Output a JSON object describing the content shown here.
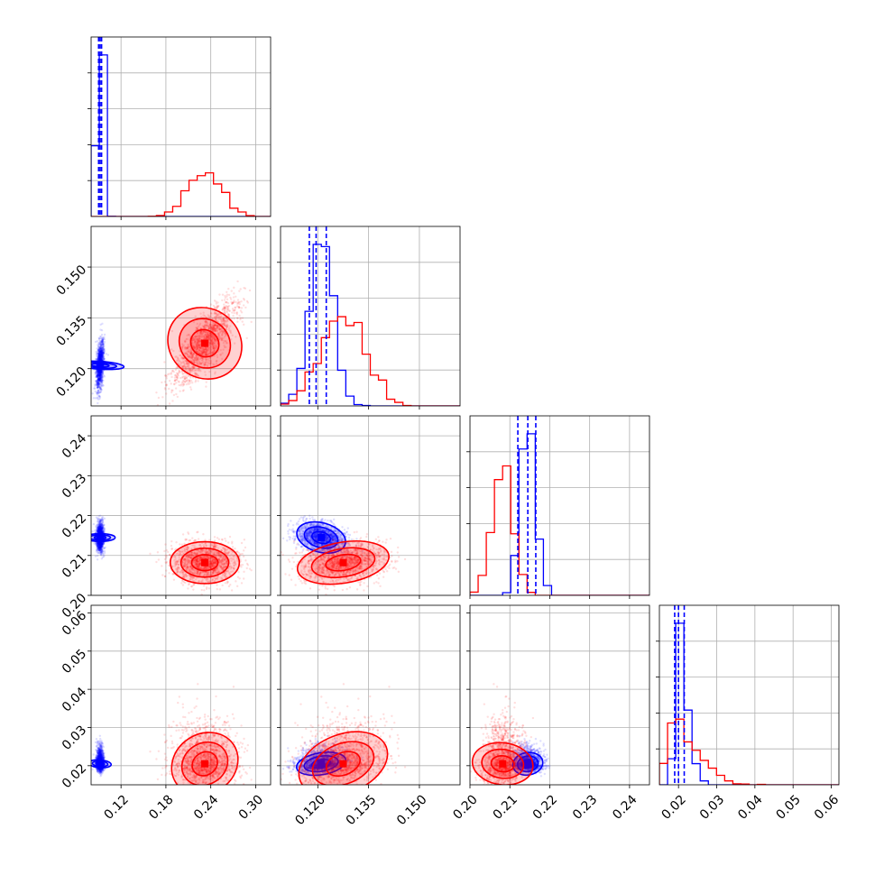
{
  "chart_data": {
    "type": "corner",
    "title": "",
    "parameters": [
      {
        "label": "",
        "range": [
          0.08,
          0.32
        ],
        "ticks": [
          0.12,
          0.18,
          0.24,
          0.3
        ],
        "tick_labels": [
          "0.12",
          "0.18",
          "0.24",
          "0.30"
        ]
      },
      {
        "label": "",
        "range": [
          0.109,
          0.162
        ],
        "ticks": [
          0.12,
          0.135,
          0.15
        ],
        "tick_labels": [
          "0.120",
          "0.135",
          "0.150"
        ]
      },
      {
        "label": "",
        "range": [
          0.2,
          0.245
        ],
        "ticks": [
          0.2,
          0.21,
          0.22,
          0.23,
          0.24
        ],
        "tick_labels": [
          "0.20",
          "0.21",
          "0.22",
          "0.23",
          "0.24"
        ]
      },
      {
        "label": "",
        "range": [
          0.015,
          0.062
        ],
        "ticks": [
          0.02,
          0.03,
          0.04,
          0.05,
          0.06
        ],
        "tick_labels": [
          "0.02",
          "0.03",
          "0.04",
          "0.05",
          "0.06"
        ]
      }
    ],
    "grid": true,
    "series": [
      {
        "color": "#0000ff",
        "mean": [
          0.092,
          0.121,
          0.2145,
          0.0205
        ],
        "std": [
          0.0025,
          0.0035,
          0.0018,
          0.0014
        ],
        "correlations": [
          [
            0,
            1,
            0.4
          ],
          [
            1,
            2,
            -0.3
          ],
          [
            0,
            3,
            0.2
          ],
          [
            1,
            3,
            0.3
          ],
          [
            2,
            3,
            0.1
          ]
        ],
        "quantiles": [
          [
            0.09,
            0.092,
            0.094
          ],
          [
            0.1175,
            0.1195,
            0.1225
          ],
          [
            0.212,
            0.2145,
            0.2165
          ],
          [
            0.019,
            0.02,
            0.0215
          ]
        ]
      },
      {
        "color": "#ff0000",
        "mean": [
          0.232,
          0.1275,
          0.2082,
          0.0205
        ],
        "std": [
          0.022,
          0.0065,
          0.0025,
          0.0038
        ],
        "correlations": [
          [
            0,
            1,
            0.8
          ],
          [
            1,
            2,
            0.3
          ],
          [
            0,
            3,
            0.3
          ],
          [
            1,
            3,
            0.4
          ],
          [
            2,
            3,
            0.1
          ]
        ],
        "quantiles": []
      }
    ]
  }
}
